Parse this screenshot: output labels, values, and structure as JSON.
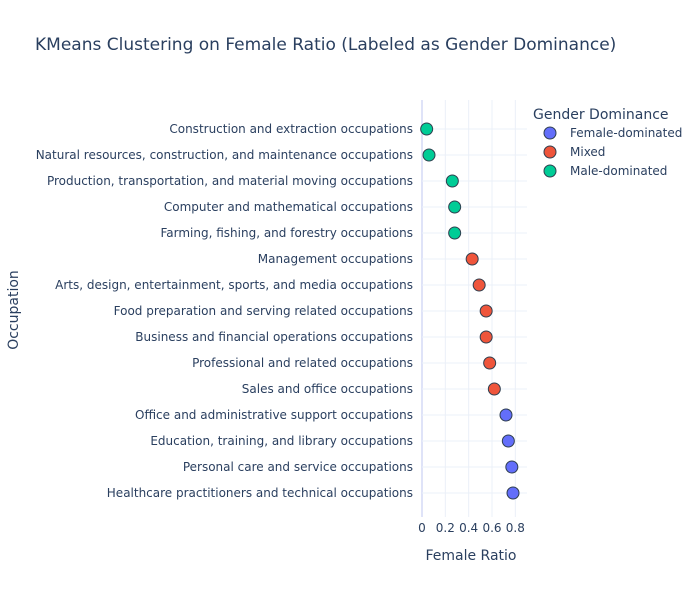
{
  "chart_data": {
    "type": "scatter",
    "title": "KMeans Clustering on Female Ratio (Labeled as Gender Dominance)",
    "xlabel": "Female Ratio",
    "ylabel": "Occupation",
    "xlim": [
      0,
      0.9
    ],
    "x_ticks": [
      "0",
      "0.2",
      "0.4",
      "0.6",
      "0.8"
    ],
    "x_tick_values": [
      0,
      0.2,
      0.4,
      0.6,
      0.8
    ],
    "grid": true,
    "legend": {
      "title": "Gender Dominance",
      "placement": "top-right"
    },
    "categories": [
      "Construction and extraction occupations",
      "Natural resources, construction, and maintenance occupations",
      "Production, transportation, and material moving occupations",
      "Computer and mathematical occupations",
      "Farming, fishing, and forestry occupations",
      "Management occupations",
      "Arts, design, entertainment, sports, and media occupations",
      "Food preparation and serving related occupations",
      "Business and financial operations occupations",
      "Professional and related occupations",
      "Sales and office occupations",
      "Office and administrative support occupations",
      "Education, training, and library occupations",
      "Personal care and service occupations",
      "Healthcare practitioners and technical occupations"
    ],
    "series": [
      {
        "name": "Female-dominated",
        "color": "#636efa",
        "points": [
          {
            "category": "Office and administrative support occupations",
            "x": 0.72
          },
          {
            "category": "Education, training, and library occupations",
            "x": 0.74
          },
          {
            "category": "Personal care and service occupations",
            "x": 0.77
          },
          {
            "category": "Healthcare practitioners and technical occupations",
            "x": 0.78
          }
        ]
      },
      {
        "name": "Mixed",
        "color": "#ef553b",
        "points": [
          {
            "category": "Management occupations",
            "x": 0.43
          },
          {
            "category": "Arts, design, entertainment, sports, and media occupations",
            "x": 0.49
          },
          {
            "category": "Food preparation and serving related occupations",
            "x": 0.55
          },
          {
            "category": "Business and financial operations occupations",
            "x": 0.55
          },
          {
            "category": "Professional and related occupations",
            "x": 0.58
          },
          {
            "category": "Sales and office occupations",
            "x": 0.62
          }
        ]
      },
      {
        "name": "Male-dominated",
        "color": "#00cc96",
        "points": [
          {
            "category": "Construction and extraction occupations",
            "x": 0.04
          },
          {
            "category": "Natural resources, construction, and maintenance occupations",
            "x": 0.06
          },
          {
            "category": "Production, transportation, and material moving occupations",
            "x": 0.26
          },
          {
            "category": "Computer and mathematical occupations",
            "x": 0.28
          },
          {
            "category": "Farming, fishing, and forestry occupations",
            "x": 0.28
          }
        ]
      }
    ]
  }
}
